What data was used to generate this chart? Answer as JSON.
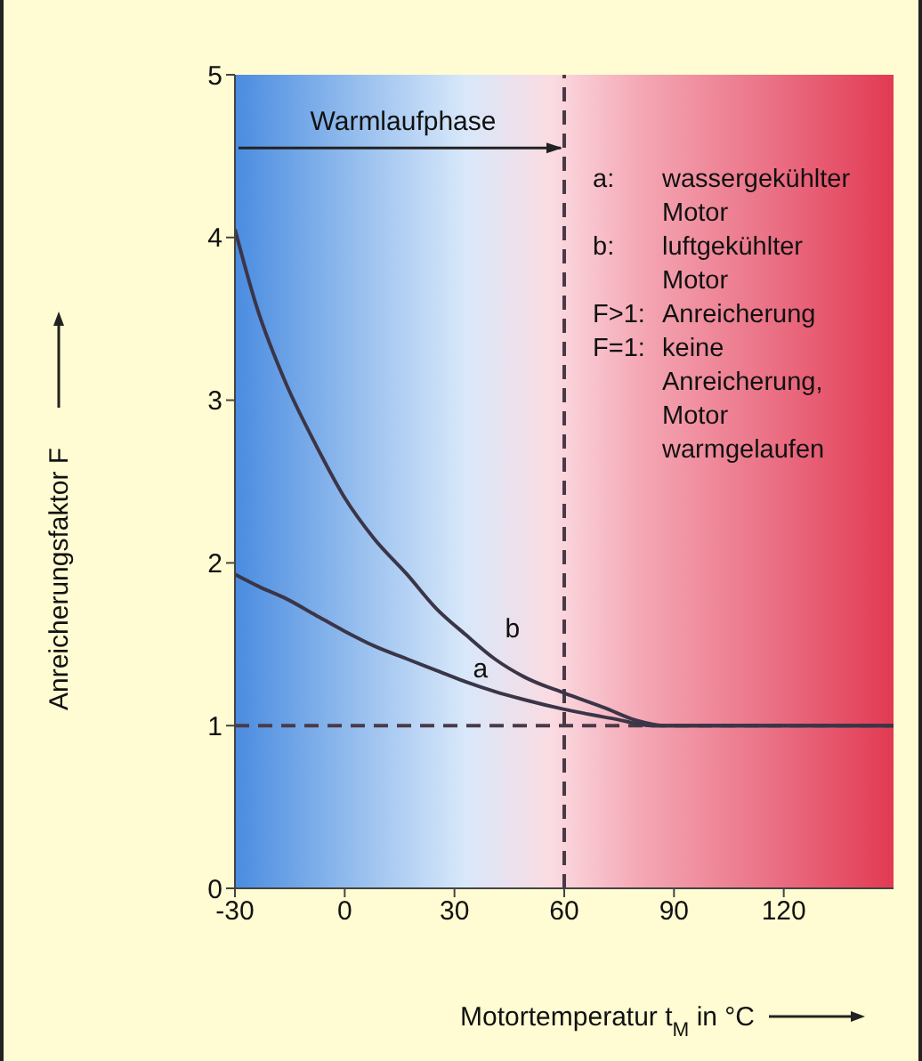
{
  "chart_data": {
    "type": "line",
    "xlabel": "Motortemperatur t$_{M}$ in °C",
    "ylabel": "Anreicherungsfaktor F",
    "xlim": [
      -30,
      150
    ],
    "xticks": [
      -30,
      0,
      30,
      60,
      90,
      120
    ],
    "ylim": [
      0,
      5
    ],
    "yticks": [
      0,
      1,
      2,
      3,
      4,
      5
    ],
    "marker": "none",
    "line_style": "solid",
    "series": [
      {
        "name": "a",
        "color": "#3b3548",
        "x": [
          -30,
          -23,
          -16,
          -8,
          0,
          8,
          17,
          25,
          33,
          41,
          49,
          60,
          74,
          84,
          150
        ],
        "values": [
          1.93,
          1.85,
          1.78,
          1.68,
          1.58,
          1.49,
          1.41,
          1.34,
          1.27,
          1.21,
          1.16,
          1.1,
          1.04,
          1.0,
          1.0
        ]
      },
      {
        "name": "b",
        "color": "#3b3548",
        "x": [
          -30,
          -24,
          -16,
          -8,
          0,
          8,
          17,
          25,
          33,
          41,
          49,
          60,
          71,
          80,
          87,
          150
        ],
        "values": [
          4.05,
          3.57,
          3.1,
          2.73,
          2.4,
          2.15,
          1.93,
          1.72,
          1.56,
          1.41,
          1.3,
          1.2,
          1.11,
          1.03,
          1.0,
          1.0
        ]
      }
    ],
    "ref_lines": [
      {
        "axis": "x",
        "value": 60,
        "color": "#4a3a48",
        "line_style": "dashed"
      },
      {
        "axis": "y",
        "value": 1,
        "color": "#4a3a48",
        "line_style": "dashed"
      }
    ],
    "annotations": [
      "Warmlaufphase",
      "a: wassergekühlter Motor",
      "b: luftgekühlter Motor",
      "F>1: Anreicherung",
      "F=1: keine Anreicherung, Motor warmgelaufen"
    ]
  }
}
